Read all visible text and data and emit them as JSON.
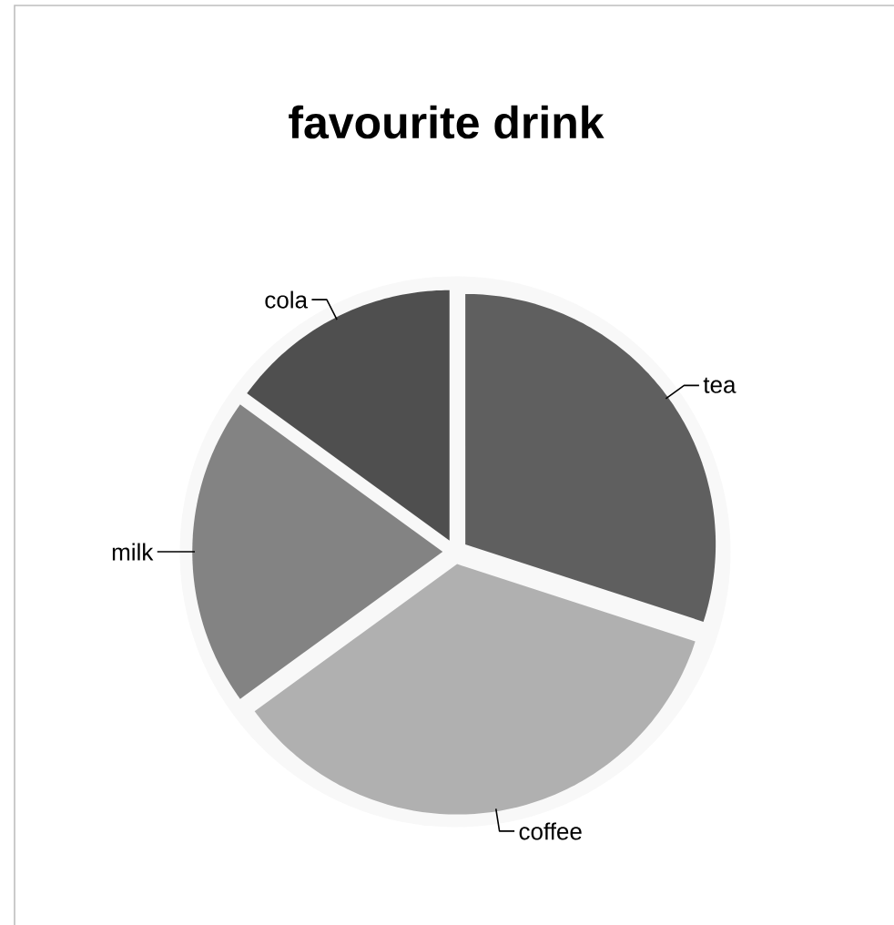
{
  "chart_data": {
    "type": "pie",
    "title": "favourite drink",
    "categories": [
      "tea",
      "coffee",
      "milk",
      "cola"
    ],
    "values": [
      30,
      35,
      20,
      15
    ],
    "colors": [
      "#5f5f5f",
      "#b0b0b0",
      "#838383",
      "#4f4f4f"
    ]
  }
}
